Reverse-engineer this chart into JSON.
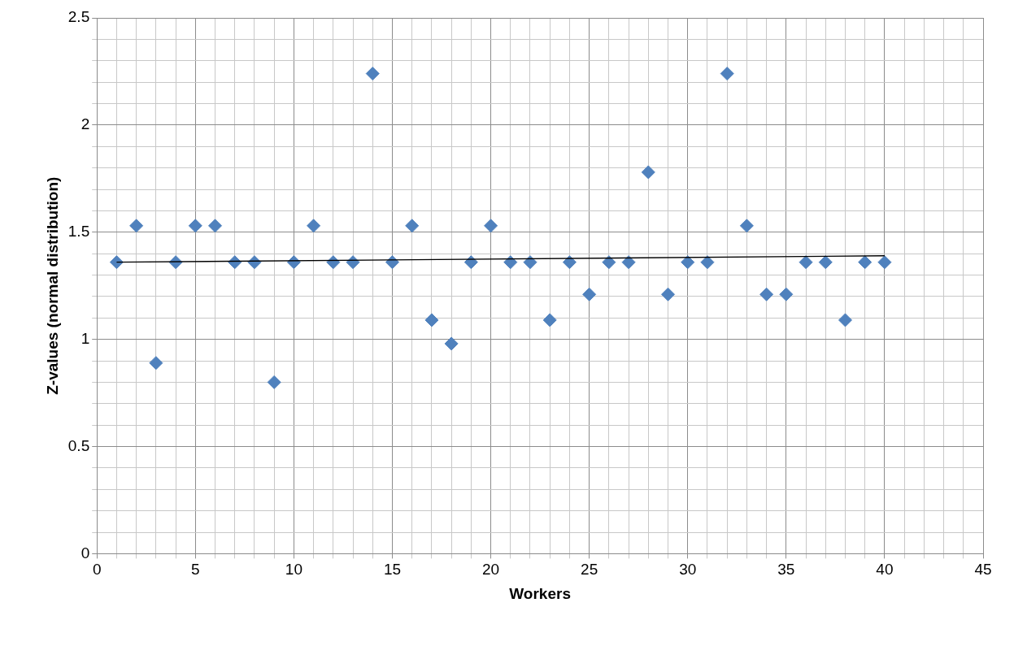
{
  "chart_data": {
    "type": "scatter",
    "xlabel": "Workers",
    "ylabel": "Z-values (normal distribution)",
    "marker": "diamond",
    "grid": true,
    "legend": false,
    "xlim": [
      0,
      45
    ],
    "ylim": [
      0,
      2.5
    ],
    "xticks": [
      0,
      {
        "value": 1,
        "label": null
      },
      {
        "value": 2,
        "label": null
      },
      {
        "value": 3,
        "label": null
      },
      {
        "value": 4,
        "label": null
      },
      5,
      {
        "value": 6,
        "label": null
      },
      {
        "value": 7,
        "label": null
      },
      {
        "value": 8,
        "label": null
      },
      {
        "value": 9,
        "label": null
      },
      10,
      {
        "value": 11,
        "label": null
      },
      {
        "value": 12,
        "label": null
      },
      {
        "value": 13,
        "label": null
      },
      {
        "value": 14,
        "label": null
      },
      15,
      {
        "value": 16,
        "label": null
      },
      {
        "value": 17,
        "label": null
      },
      {
        "value": 18,
        "label": null
      },
      {
        "value": 19,
        "label": null
      },
      20,
      {
        "value": 21,
        "label": null
      },
      {
        "value": 22,
        "label": null
      },
      {
        "value": 23,
        "label": null
      },
      {
        "value": 24,
        "label": null
      },
      25,
      {
        "value": 26,
        "label": null
      },
      {
        "value": 27,
        "label": null
      },
      {
        "value": 28,
        "label": null
      },
      {
        "value": 29,
        "label": null
      },
      30,
      {
        "value": 31,
        "label": null
      },
      {
        "value": 32,
        "label": null
      },
      {
        "value": 33,
        "label": null
      },
      {
        "value": 34,
        "label": null
      },
      35,
      {
        "value": 36,
        "label": null
      },
      {
        "value": 37,
        "label": null
      },
      {
        "value": 38,
        "label": null
      },
      {
        "value": 39,
        "label": null
      },
      40,
      {
        "value": 41,
        "label": null
      },
      {
        "value": 42,
        "label": null
      },
      {
        "value": 43,
        "label": null
      },
      {
        "value": 44,
        "label": null
      },
      45
    ],
    "yticks": [
      0,
      {
        "value": 0.1,
        "label": null
      },
      {
        "value": 0.2,
        "label": null
      },
      {
        "value": 0.3,
        "label": null
      },
      {
        "value": 0.4,
        "label": null
      },
      0.5,
      {
        "value": 0.6,
        "label": null
      },
      {
        "value": 0.7,
        "label": null
      },
      {
        "value": 0.8,
        "label": null
      },
      {
        "value": 0.9,
        "label": null
      },
      1,
      {
        "value": 1.1,
        "label": null
      },
      {
        "value": 1.2,
        "label": null
      },
      {
        "value": 1.3,
        "label": null
      },
      {
        "value": 1.4,
        "label": null
      },
      1.5,
      {
        "value": 1.6,
        "label": null
      },
      {
        "value": 1.7,
        "label": null
      },
      {
        "value": 1.8,
        "label": null
      },
      {
        "value": 1.9,
        "label": null
      },
      2,
      {
        "value": 2.1,
        "label": null
      },
      {
        "value": 2.2,
        "label": null
      },
      {
        "value": 2.3,
        "label": null
      },
      {
        "value": 2.4,
        "label": null
      },
      2.5
    ],
    "series": [
      {
        "type": "scatter",
        "color": "#4f81bd",
        "x": [
          1,
          2,
          3,
          4,
          5,
          6,
          7,
          8,
          9,
          10,
          11,
          12,
          13,
          14,
          15,
          16,
          17,
          18,
          19,
          20,
          21,
          22,
          23,
          24,
          25,
          26,
          27,
          28,
          29,
          30,
          31,
          32,
          33,
          34,
          35,
          36,
          37,
          38,
          39,
          40
        ],
        "values": [
          1.36,
          1.53,
          0.89,
          1.36,
          1.53,
          1.53,
          1.36,
          1.36,
          0.8,
          1.36,
          1.53,
          1.36,
          1.36,
          2.24,
          1.36,
          1.53,
          1.09,
          0.98,
          1.36,
          1.53,
          1.36,
          1.36,
          1.09,
          1.36,
          1.21,
          1.36,
          1.36,
          1.78,
          1.21,
          1.36,
          1.36,
          2.24,
          1.53,
          1.21,
          1.21,
          1.36,
          1.36,
          1.09,
          1.36,
          1.36
        ]
      },
      {
        "type": "line",
        "color": "#000000",
        "marker": "none",
        "line_style": "solid",
        "x": [
          1,
          40
        ],
        "values": [
          1.36,
          1.39
        ]
      }
    ]
  }
}
